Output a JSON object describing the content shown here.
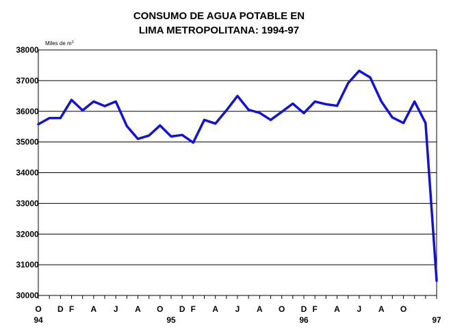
{
  "chart_data": {
    "type": "line",
    "title_line1": "CONSUMO DE AGUA POTABLE EN",
    "title_line2": "LIMA METROPOLITANA: 1994-97",
    "ylabel": "Miles de m",
    "ylabel_superscript": "3",
    "ylim": [
      30000,
      38000
    ],
    "yticks": [
      30000,
      31000,
      32000,
      33000,
      34000,
      35000,
      36000,
      37000,
      38000
    ],
    "grid": true,
    "x_month_labels": [
      "O",
      "",
      "D",
      "F",
      "",
      "A",
      "",
      "J",
      "",
      "A",
      "",
      "O",
      "",
      "D",
      "F",
      "",
      "A",
      "",
      "J",
      "",
      "A",
      "",
      "O",
      "",
      "D",
      "F",
      "",
      "A",
      "",
      "J",
      "",
      "A",
      "",
      "O"
    ],
    "x_year_labels": [
      {
        "index": 0,
        "label": "94"
      },
      {
        "index": 12,
        "label": "95"
      },
      {
        "index": 24,
        "label": "96"
      },
      {
        "index": 36,
        "label": "97"
      }
    ],
    "line_color": "#1010e0",
    "series": [
      {
        "name": "Consumo de agua potable",
        "values": [
          35580,
          35780,
          35780,
          36370,
          36030,
          36320,
          36170,
          36320,
          35520,
          35100,
          35210,
          35540,
          35180,
          35230,
          34980,
          35720,
          35600,
          36030,
          36500,
          36050,
          35950,
          35720,
          35980,
          36250,
          35940,
          36320,
          36230,
          36180,
          36920,
          37320,
          37100,
          36320,
          35800,
          35620,
          36320,
          35620,
          30480
        ]
      }
    ]
  }
}
